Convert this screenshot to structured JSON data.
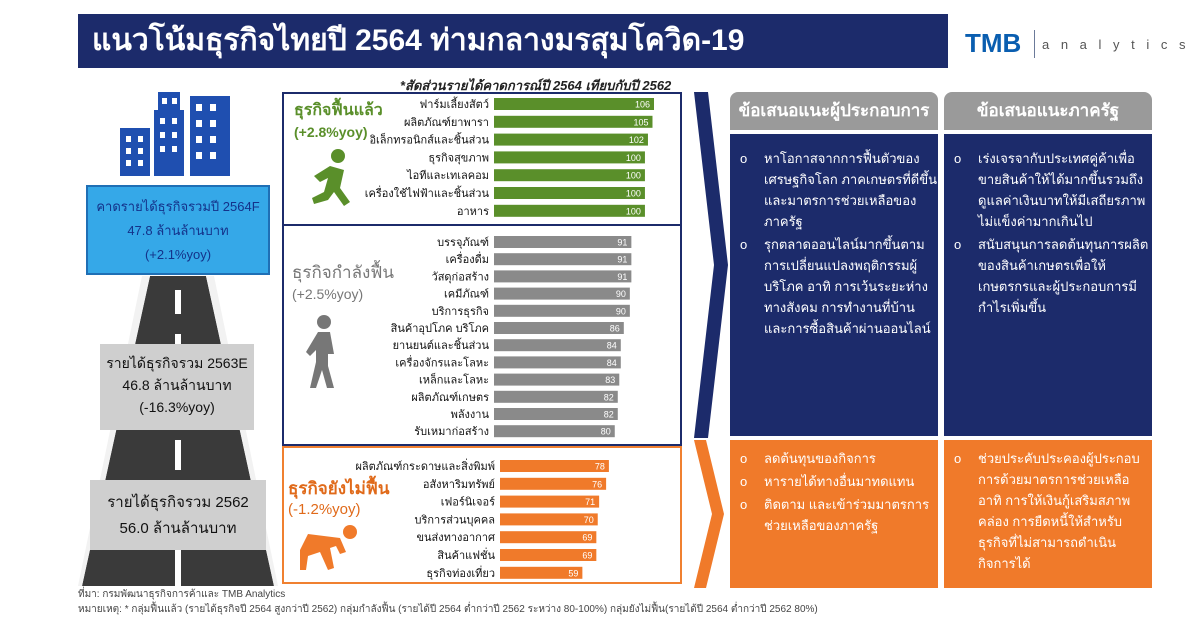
{
  "header": {
    "title": "แนวโน้มธุรกิจไทยปี 2564 ท่ามกลางมรสุมโควิด-19",
    "logo_brand": "TMB",
    "logo_sub": "a n a l y t i c s",
    "brand_color": "#1c2b6b"
  },
  "subtitle": "*สัดส่วนรายได้คาดการณ์ปี 2564 เทียบกับปี 2562",
  "left_column": {
    "forecast": {
      "line1": "คาดรายได้ธุรกิจรวมปี 2564F",
      "line2": "47.8 ล้านล้านบาท",
      "line3": "(+2.1%yoy)"
    },
    "y2563": {
      "line1": "รายได้ธุรกิจรวม 2563E",
      "line2": "46.8 ล้านล้านบาท",
      "line3": "(-16.3%yoy)"
    },
    "y2562": {
      "line1": "รายได้ธุรกิจรวม 2562",
      "line2": "56.0 ล้านล้านบาท"
    }
  },
  "chart_data": {
    "type": "bar",
    "orientation": "horizontal",
    "groups": [
      {
        "title": "ธุรกิจฟื้นแล้ว",
        "growth": "(+2.8%yoy)",
        "color": "#5a8f2a",
        "categories": [
          "ฟาร์มเลี้ยงสัตว์",
          "ผลิตภัณฑ์ยาพารา",
          "อิเล็กทรอนิกส์และชิ้นส่วน",
          "ธุรกิจสุขภาพ",
          "ไอทีและเทเลคอม",
          "เครื่องใช้ไฟฟ้าและชิ้นส่วน",
          "อาหาร"
        ],
        "values": [
          106,
          105,
          102,
          100,
          100,
          100,
          100
        ]
      },
      {
        "title": "ธุรกิจกำลังฟื้น",
        "growth": "(+2.5%yoy)",
        "color": "#8a8a8a",
        "categories": [
          "บรรจุภัณฑ์",
          "เครื่องดื่ม",
          "วัสดุก่อสร้าง",
          "เคมีภัณฑ์",
          "บริการธุรกิจ",
          "สินค้าอุปโภค บริโภค",
          "ยานยนต์และชิ้นส่วน",
          "เครื่องจักรและโลหะ",
          "เหล็กและโลหะ",
          "ผลิตภัณฑ์เกษตร",
          "พลังงาน",
          "รับเหมาก่อสร้าง"
        ],
        "values": [
          91,
          91,
          91,
          90,
          90,
          86,
          84,
          84,
          83,
          82,
          82,
          80
        ]
      },
      {
        "title": "ธุรกิจยังไม่ฟื้น",
        "growth": "(-1.2%yoy)",
        "color": "#f07a2a",
        "categories": [
          "ผลิตภัณฑ์กระดาษและสิ่งพิมพ์",
          "อสังหาริมทรัพย์",
          "เฟอร์นิเจอร์",
          "บริการส่วนบุคคล",
          "ขนส่งทางอากาศ",
          "สินค้าแฟชั่น",
          "ธุรกิจท่องเที่ยว"
        ],
        "values": [
          78,
          76,
          71,
          70,
          69,
          69,
          59
        ]
      }
    ]
  },
  "recommendations": {
    "operators_header": "ข้อเสนอแนะผู้ประกอบการ",
    "government_header": "ข้อเสนอแนะภาครัฐ",
    "operators_blue": [
      "หาโอกาสจากการฟื้นตัวของเศรษฐกิจโลก ภาคเกษตรที่ดีขึ้น และมาตรการช่วยเหลือของภาครัฐ",
      "รุกตลาดออนไลน์มากขึ้นตามการเปลี่ยนแปลงพฤติกรรมผู้บริโภค อาทิ การเว้นระยะห่างทางสังคม การทำงานที่บ้าน และการซื้อสินค้าผ่านออนไลน์"
    ],
    "government_blue": [
      "เร่งเจรจากับประเทศคู่ค้าเพื่อขายสินค้าให้ได้มากขึ้นรวมถึงดูแลค่าเงินบาทให้มีเสถียรภาพไม่แข็งค่ามากเกินไป",
      "สนับสนุนการลดต้นทุนการผลิตของสินค้าเกษตรเพื่อให้เกษตรกรและผู้ประกอบการมีกำไรเพิ่มขึ้น"
    ],
    "operators_orange": [
      "ลดต้นทุนของกิจการ",
      "หารายได้ทางอื่นมาทดแทน",
      "ติดตาม และเข้าร่วมมาตรการช่วยเหลือของภาครัฐ"
    ],
    "government_orange": [
      "ช่วยประคับประคองผู้ประกอบการด้วยมาตรการช่วยเหลือ อาทิ การให้เงินกู้เสริมสภาพคล่อง การยืดหนี้ให้สำหรับธุรกิจที่ไม่สามารถดำเนินกิจการได้"
    ],
    "bullet": "o"
  },
  "footer": {
    "source": "ที่มา: กรมพัฒนาธุรกิจการค้าและ TMB Analytics",
    "note": "หมายเหตุ: * กลุ่มฟื้นแล้ว (รายได้ธุรกิจปี 2564 สูงกว่าปี 2562) กลุ่มกำลังฟื้น (รายได้ปี 2564 ต่ำกว่าปี 2562 ระหว่าง 80-100%) กลุ่มยังไม่ฟื้น(รายได้ปี 2564 ต่ำกว่าปี 2562 80%)"
  }
}
